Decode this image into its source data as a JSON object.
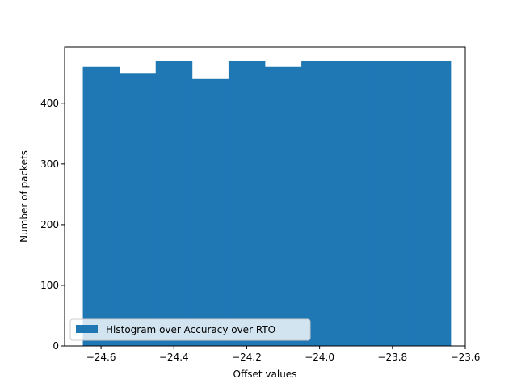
{
  "chart_data": {
    "type": "bar",
    "title": "",
    "xlabel": "Offset values",
    "ylabel": "Number of packets",
    "xlim": [
      -24.7,
      -23.6
    ],
    "ylim": [
      0,
      493
    ],
    "x_ticks": [
      -24.6,
      -24.4,
      -24.2,
      -24.0,
      -23.8,
      -23.6
    ],
    "x_tick_labels": [
      "−24.6",
      "−24.4",
      "−24.2",
      "−24.0",
      "−23.8",
      "−23.6"
    ],
    "y_ticks": [
      0,
      100,
      200,
      300,
      400
    ],
    "y_tick_labels": [
      "0",
      "100",
      "200",
      "300",
      "400"
    ],
    "bin_edges": [
      -24.65,
      -24.55,
      -24.45,
      -24.35,
      -24.25,
      -24.15,
      -24.05,
      -23.95,
      -23.85,
      -23.75,
      -23.64
    ],
    "values": [
      460,
      450,
      470,
      440,
      470,
      460,
      470,
      470,
      470,
      470
    ],
    "bar_color": "#1f77b4",
    "grid": false,
    "legend": {
      "placement": "lower-left",
      "entries": [
        {
          "label": "Histogram over Accuracy over RTO",
          "color": "#1f77b4"
        }
      ]
    }
  }
}
